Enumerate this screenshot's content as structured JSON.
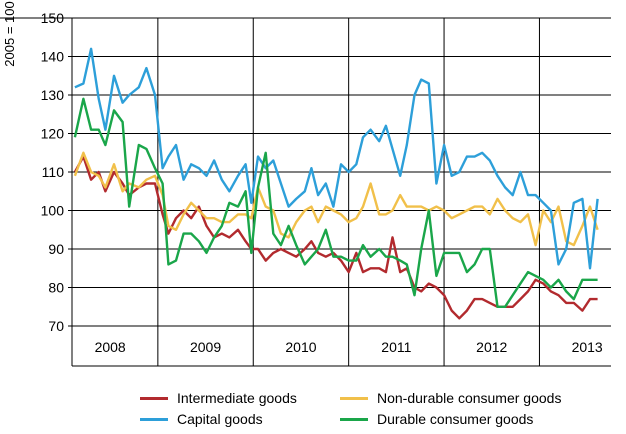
{
  "chart_data": {
    "type": "line",
    "ylabel": "2005 = 100",
    "ylim": [
      70,
      150
    ],
    "yticks": [
      70,
      80,
      90,
      100,
      110,
      120,
      130,
      140,
      150
    ],
    "xlim": [
      2007.6,
      2013.25
    ],
    "year_labels": [
      {
        "label": "2008",
        "x": 2008.0
      },
      {
        "label": "2009",
        "x": 2009.0
      },
      {
        "label": "2010",
        "x": 2010.0
      },
      {
        "label": "2011",
        "x": 2011.0
      },
      {
        "label": "2012",
        "x": 2012.0
      },
      {
        "label": "2013",
        "x": 2013.0
      }
    ],
    "year_dividers": [
      2008.5,
      2009.5,
      2010.5,
      2011.5,
      2012.5
    ],
    "grid": true,
    "legend_position": "bottom",
    "series": [
      {
        "name": "Intermediate goods",
        "color": "#b22a2e",
        "points": [
          [
            2007.63,
            110
          ],
          [
            2007.72,
            114
          ],
          [
            2007.8,
            108
          ],
          [
            2007.88,
            110
          ],
          [
            2007.95,
            105
          ],
          [
            2008.04,
            110
          ],
          [
            2008.13,
            107
          ],
          [
            2008.2,
            104
          ],
          [
            2008.3,
            106
          ],
          [
            2008.38,
            107
          ],
          [
            2008.47,
            107
          ],
          [
            2008.55,
            99
          ],
          [
            2008.61,
            94
          ],
          [
            2008.69,
            98
          ],
          [
            2008.77,
            100
          ],
          [
            2008.85,
            98
          ],
          [
            2008.93,
            101
          ],
          [
            2009.01,
            96
          ],
          [
            2009.09,
            93
          ],
          [
            2009.17,
            94
          ],
          [
            2009.25,
            93
          ],
          [
            2009.34,
            95
          ],
          [
            2009.42,
            92
          ],
          [
            2009.48,
            90
          ],
          [
            2009.55,
            90
          ],
          [
            2009.63,
            87
          ],
          [
            2009.71,
            89
          ],
          [
            2009.79,
            90
          ],
          [
            2009.87,
            89
          ],
          [
            2009.95,
            88
          ],
          [
            2010.04,
            90
          ],
          [
            2010.11,
            92
          ],
          [
            2010.18,
            89
          ],
          [
            2010.26,
            88
          ],
          [
            2010.34,
            89
          ],
          [
            2010.42,
            87
          ],
          [
            2010.5,
            84
          ],
          [
            2010.58,
            89
          ],
          [
            2010.65,
            84
          ],
          [
            2010.73,
            85
          ],
          [
            2010.82,
            85
          ],
          [
            2010.89,
            84
          ],
          [
            2010.96,
            93
          ],
          [
            2011.04,
            84
          ],
          [
            2011.11,
            85
          ],
          [
            2011.19,
            80
          ],
          [
            2011.26,
            79
          ],
          [
            2011.34,
            81
          ],
          [
            2011.42,
            80
          ],
          [
            2011.5,
            78
          ],
          [
            2011.58,
            74
          ],
          [
            2011.66,
            72
          ],
          [
            2011.74,
            74
          ],
          [
            2011.82,
            77
          ],
          [
            2011.9,
            77
          ],
          [
            2011.98,
            76
          ],
          [
            2012.06,
            75
          ],
          [
            2012.14,
            75
          ],
          [
            2012.22,
            75
          ],
          [
            2012.3,
            77
          ],
          [
            2012.38,
            79
          ],
          [
            2012.46,
            82
          ],
          [
            2012.54,
            81
          ],
          [
            2012.62,
            79
          ],
          [
            2012.7,
            78
          ],
          [
            2012.78,
            76
          ],
          [
            2012.86,
            76
          ],
          [
            2012.95,
            74
          ],
          [
            2013.03,
            77
          ],
          [
            2013.11,
            77
          ]
        ]
      },
      {
        "name": "Non-durable consumer goods",
        "color": "#f1c04a",
        "points": [
          [
            2007.63,
            109
          ],
          [
            2007.72,
            115
          ],
          [
            2007.8,
            110
          ],
          [
            2007.88,
            109
          ],
          [
            2007.95,
            106
          ],
          [
            2008.04,
            112
          ],
          [
            2008.13,
            105
          ],
          [
            2008.2,
            107
          ],
          [
            2008.3,
            106
          ],
          [
            2008.38,
            108
          ],
          [
            2008.47,
            109
          ],
          [
            2008.55,
            104
          ],
          [
            2008.61,
            96
          ],
          [
            2008.69,
            95
          ],
          [
            2008.77,
            99
          ],
          [
            2008.85,
            102
          ],
          [
            2008.93,
            100
          ],
          [
            2009.01,
            98
          ],
          [
            2009.09,
            98
          ],
          [
            2009.17,
            97
          ],
          [
            2009.25,
            97
          ],
          [
            2009.34,
            99
          ],
          [
            2009.42,
            99
          ],
          [
            2009.48,
            98
          ],
          [
            2009.55,
            106
          ],
          [
            2009.63,
            101
          ],
          [
            2009.71,
            100
          ],
          [
            2009.79,
            94
          ],
          [
            2009.87,
            93
          ],
          [
            2009.95,
            97
          ],
          [
            2010.04,
            100
          ],
          [
            2010.11,
            101
          ],
          [
            2010.18,
            97
          ],
          [
            2010.26,
            101
          ],
          [
            2010.34,
            100
          ],
          [
            2010.42,
            99
          ],
          [
            2010.5,
            97
          ],
          [
            2010.58,
            98
          ],
          [
            2010.65,
            101
          ],
          [
            2010.73,
            107
          ],
          [
            2010.82,
            99
          ],
          [
            2010.89,
            99
          ],
          [
            2010.96,
            100
          ],
          [
            2011.04,
            104
          ],
          [
            2011.11,
            101
          ],
          [
            2011.19,
            101
          ],
          [
            2011.26,
            101
          ],
          [
            2011.34,
            100
          ],
          [
            2011.42,
            101
          ],
          [
            2011.5,
            100
          ],
          [
            2011.58,
            98
          ],
          [
            2011.66,
            99
          ],
          [
            2011.74,
            100
          ],
          [
            2011.82,
            101
          ],
          [
            2011.9,
            101
          ],
          [
            2011.98,
            99
          ],
          [
            2012.06,
            103
          ],
          [
            2012.14,
            100
          ],
          [
            2012.22,
            98
          ],
          [
            2012.3,
            97
          ],
          [
            2012.38,
            99
          ],
          [
            2012.46,
            91
          ],
          [
            2012.54,
            100
          ],
          [
            2012.62,
            97
          ],
          [
            2012.7,
            101
          ],
          [
            2012.78,
            92
          ],
          [
            2012.86,
            91
          ],
          [
            2012.95,
            96
          ],
          [
            2013.03,
            101
          ],
          [
            2013.11,
            95
          ]
        ]
      },
      {
        "name": "Capital goods",
        "color": "#2d9fd9",
        "points": [
          [
            2007.63,
            132
          ],
          [
            2007.72,
            133
          ],
          [
            2007.8,
            142
          ],
          [
            2007.88,
            129
          ],
          [
            2007.95,
            121
          ],
          [
            2008.04,
            135
          ],
          [
            2008.13,
            128
          ],
          [
            2008.2,
            130
          ],
          [
            2008.3,
            132
          ],
          [
            2008.38,
            137
          ],
          [
            2008.47,
            130
          ],
          [
            2008.55,
            111
          ],
          [
            2008.61,
            114
          ],
          [
            2008.69,
            117
          ],
          [
            2008.77,
            108
          ],
          [
            2008.85,
            112
          ],
          [
            2008.93,
            111
          ],
          [
            2009.01,
            109
          ],
          [
            2009.09,
            113
          ],
          [
            2009.17,
            108
          ],
          [
            2009.25,
            105
          ],
          [
            2009.34,
            109
          ],
          [
            2009.42,
            112
          ],
          [
            2009.48,
            102
          ],
          [
            2009.55,
            114
          ],
          [
            2009.63,
            111
          ],
          [
            2009.71,
            113
          ],
          [
            2009.79,
            107
          ],
          [
            2009.87,
            101
          ],
          [
            2009.95,
            103
          ],
          [
            2010.04,
            105
          ],
          [
            2010.11,
            111
          ],
          [
            2010.18,
            104
          ],
          [
            2010.26,
            107
          ],
          [
            2010.34,
            101
          ],
          [
            2010.42,
            112
          ],
          [
            2010.5,
            110
          ],
          [
            2010.58,
            112
          ],
          [
            2010.65,
            119
          ],
          [
            2010.73,
            121
          ],
          [
            2010.82,
            118
          ],
          [
            2010.89,
            122
          ],
          [
            2010.96,
            116
          ],
          [
            2011.04,
            109
          ],
          [
            2011.11,
            117
          ],
          [
            2011.19,
            130
          ],
          [
            2011.26,
            134
          ],
          [
            2011.34,
            133
          ],
          [
            2011.42,
            107
          ],
          [
            2011.5,
            117
          ],
          [
            2011.58,
            109
          ],
          [
            2011.66,
            110
          ],
          [
            2011.74,
            114
          ],
          [
            2011.82,
            114
          ],
          [
            2011.9,
            115
          ],
          [
            2011.98,
            113
          ],
          [
            2012.06,
            109
          ],
          [
            2012.14,
            106
          ],
          [
            2012.22,
            104
          ],
          [
            2012.3,
            110
          ],
          [
            2012.38,
            104
          ],
          [
            2012.46,
            104
          ],
          [
            2012.54,
            102
          ],
          [
            2012.62,
            100
          ],
          [
            2012.7,
            86
          ],
          [
            2012.78,
            90
          ],
          [
            2012.86,
            102
          ],
          [
            2012.95,
            103
          ],
          [
            2013.03,
            85
          ],
          [
            2013.11,
            103
          ]
        ]
      },
      {
        "name": "Durable consumer goods",
        "color": "#1aa64a",
        "points": [
          [
            2007.63,
            119
          ],
          [
            2007.72,
            129
          ],
          [
            2007.8,
            121
          ],
          [
            2007.88,
            121
          ],
          [
            2007.95,
            117
          ],
          [
            2008.04,
            126
          ],
          [
            2008.13,
            123
          ],
          [
            2008.2,
            101
          ],
          [
            2008.3,
            117
          ],
          [
            2008.38,
            116
          ],
          [
            2008.47,
            111
          ],
          [
            2008.55,
            107
          ],
          [
            2008.61,
            86
          ],
          [
            2008.69,
            87
          ],
          [
            2008.77,
            94
          ],
          [
            2008.85,
            94
          ],
          [
            2008.93,
            92
          ],
          [
            2009.01,
            89
          ],
          [
            2009.09,
            93
          ],
          [
            2009.17,
            96
          ],
          [
            2009.25,
            102
          ],
          [
            2009.34,
            101
          ],
          [
            2009.42,
            105
          ],
          [
            2009.48,
            89
          ],
          [
            2009.55,
            106
          ],
          [
            2009.63,
            115
          ],
          [
            2009.71,
            94
          ],
          [
            2009.79,
            91
          ],
          [
            2009.87,
            96
          ],
          [
            2009.95,
            91
          ],
          [
            2010.04,
            86
          ],
          [
            2010.11,
            88
          ],
          [
            2010.18,
            90
          ],
          [
            2010.26,
            95
          ],
          [
            2010.34,
            88
          ],
          [
            2010.42,
            88
          ],
          [
            2010.5,
            87
          ],
          [
            2010.58,
            87
          ],
          [
            2010.65,
            91
          ],
          [
            2010.73,
            88
          ],
          [
            2010.82,
            90
          ],
          [
            2010.89,
            88
          ],
          [
            2010.96,
            88
          ],
          [
            2011.04,
            87
          ],
          [
            2011.11,
            86
          ],
          [
            2011.19,
            78
          ],
          [
            2011.26,
            90
          ],
          [
            2011.34,
            100
          ],
          [
            2011.42,
            83
          ],
          [
            2011.5,
            89
          ],
          [
            2011.58,
            89
          ],
          [
            2011.66,
            89
          ],
          [
            2011.74,
            84
          ],
          [
            2011.82,
            86
          ],
          [
            2011.9,
            90
          ],
          [
            2011.98,
            90
          ],
          [
            2012.06,
            75
          ],
          [
            2012.14,
            75
          ],
          [
            2012.22,
            78
          ],
          [
            2012.3,
            81
          ],
          [
            2012.38,
            84
          ],
          [
            2012.46,
            83
          ],
          [
            2012.54,
            82
          ],
          [
            2012.62,
            80
          ],
          [
            2012.7,
            82
          ],
          [
            2012.78,
            79
          ],
          [
            2012.86,
            77
          ],
          [
            2012.95,
            82
          ],
          [
            2013.03,
            82
          ],
          [
            2013.11,
            82
          ]
        ]
      }
    ]
  }
}
